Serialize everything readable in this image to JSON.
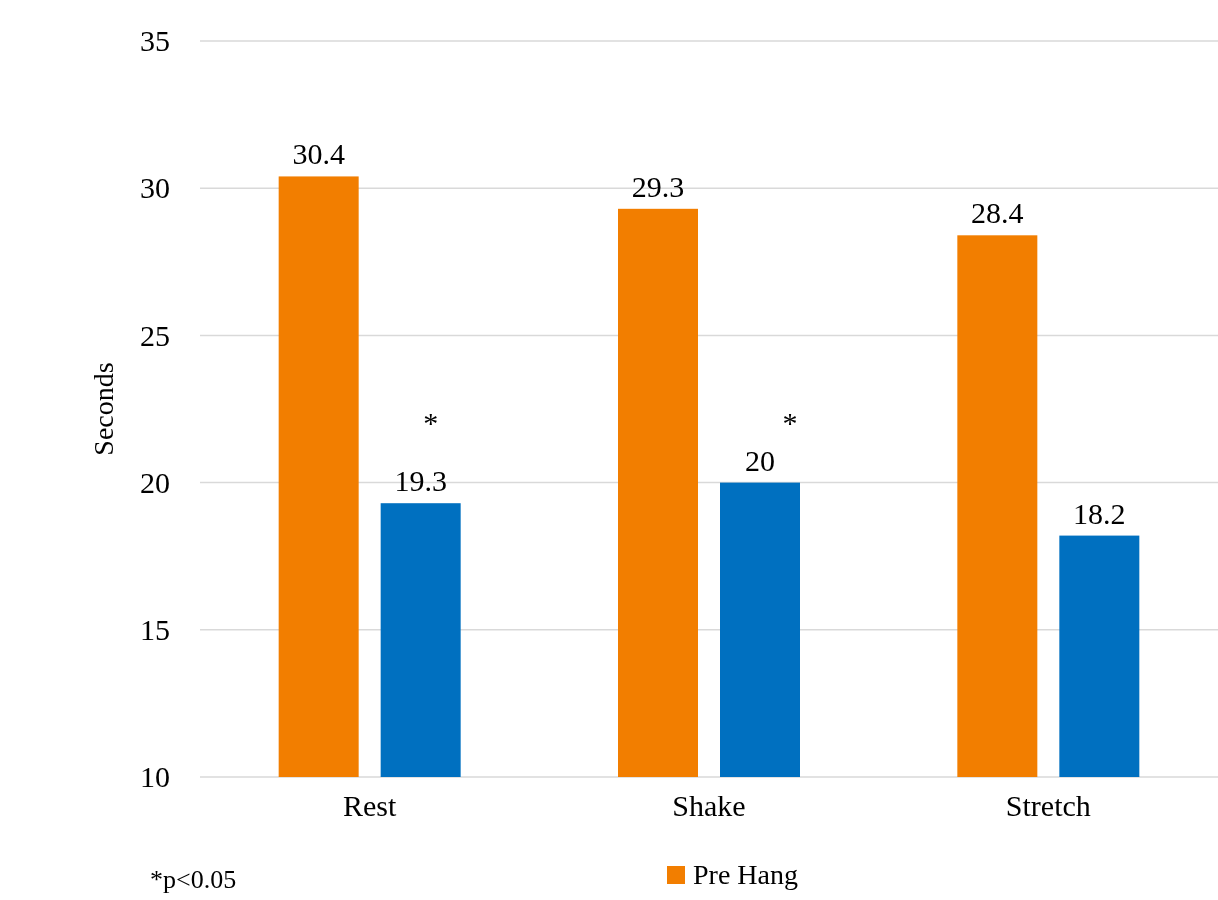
{
  "chart_data": {
    "type": "bar",
    "ylabel": "Seconds",
    "categories": [
      "Rest",
      "Shake",
      "Stretch"
    ],
    "series": [
      {
        "name": "Pre Hang",
        "color": "#f27e00",
        "values": [
          30.4,
          29.3,
          28.4
        ]
      },
      {
        "color": "#0070c0",
        "values": [
          19.3,
          20,
          18.2
        ]
      }
    ],
    "ylim": [
      10,
      35
    ],
    "yticks": [
      10,
      15,
      20,
      25,
      30,
      35
    ],
    "grid": "y",
    "data_labels": true,
    "legend": "bottom",
    "annotations": [
      "*",
      "*",
      "*p<0.05"
    ]
  }
}
